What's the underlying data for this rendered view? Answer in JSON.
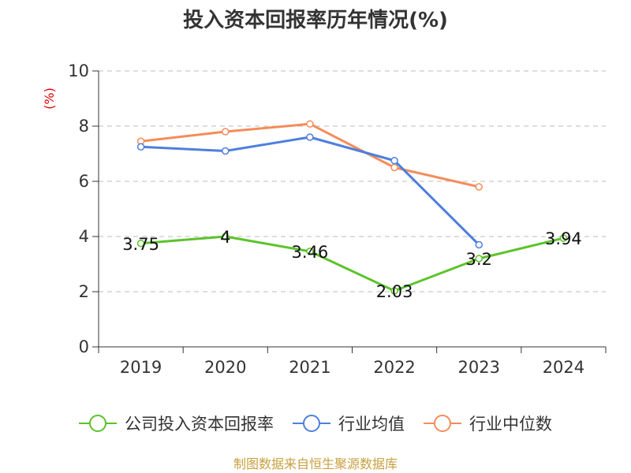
{
  "colors": {
    "unit": "#e00000",
    "source": "#c8a040",
    "grid": "#bbbbbb",
    "axis": "#333333"
  },
  "chart_data": {
    "type": "line",
    "title": "投入资本回报率历年情况(%)",
    "ylabel": "(%)",
    "xlabel": "",
    "categories": [
      "2019",
      "2020",
      "2021",
      "2022",
      "2023",
      "2024"
    ],
    "ylim": [
      0,
      10
    ],
    "yticks": [
      0,
      2,
      4,
      6,
      8,
      10
    ],
    "grid": "horizontal dashed",
    "legend_position": "bottom",
    "series": [
      {
        "name": "公司投入资本回报率",
        "color": "#5cc32a",
        "values": [
          3.75,
          4,
          3.46,
          2.03,
          3.2,
          3.94
        ],
        "labels": [
          "3.75",
          "4",
          "3.46",
          "2.03",
          "3.2",
          "3.94"
        ]
      },
      {
        "name": "行业均值",
        "color": "#4e7fdd",
        "values": [
          7.25,
          7.1,
          7.6,
          6.75,
          3.7,
          null
        ]
      },
      {
        "name": "行业中位数",
        "color": "#f58c5a",
        "values": [
          7.45,
          7.8,
          8.08,
          6.5,
          5.8,
          null
        ]
      }
    ]
  },
  "source": "制图数据来自恒生聚源数据库"
}
